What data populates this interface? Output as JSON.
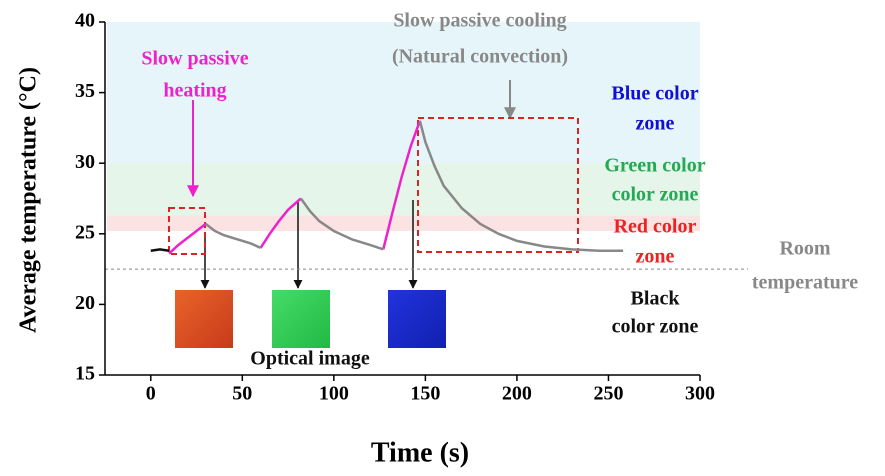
{
  "chart_data": {
    "type": "line",
    "x_label": "Time (s)",
    "y_label": "Average temperature (°C)",
    "xlim": [
      -25,
      300
    ],
    "xticks": [
      0,
      50,
      100,
      150,
      200,
      250,
      300
    ],
    "ylim": [
      15,
      40
    ],
    "yticks": [
      15,
      20,
      25,
      30,
      35,
      40
    ],
    "series": [
      {
        "color": "#111111",
        "x": [
          0,
          5,
          10
        ],
        "values": [
          23.8,
          23.9,
          23.8
        ]
      },
      {
        "color": "#ee22cc",
        "x": [
          10,
          15,
          20,
          25,
          30,
          null,
          60,
          65,
          70,
          75,
          82,
          null,
          127,
          132,
          137,
          142,
          147
        ],
        "values": [
          23.6,
          24.2,
          24.7,
          25.2,
          25.7,
          null,
          24.0,
          25.0,
          25.9,
          26.7,
          27.5,
          null,
          23.9,
          26.5,
          29.0,
          31.2,
          33.0
        ]
      },
      {
        "color": "#888888",
        "x": [
          30,
          35,
          40,
          45,
          50,
          55,
          60,
          null,
          82,
          87,
          92,
          100,
          110,
          120,
          127,
          null,
          147,
          150,
          155,
          160,
          170,
          180,
          190,
          200,
          215,
          230,
          245,
          258
        ],
        "values": [
          25.7,
          25.2,
          24.9,
          24.7,
          24.5,
          24.3,
          24.0,
          null,
          27.5,
          26.6,
          25.9,
          25.2,
          24.6,
          24.2,
          23.9,
          null,
          33.0,
          31.5,
          29.8,
          28.4,
          26.8,
          25.7,
          25.0,
          24.5,
          24.1,
          23.9,
          23.8,
          23.8
        ]
      }
    ],
    "zones": [
      {
        "label": [
          "Blue color",
          "zone"
        ],
        "range": [
          30,
          40
        ],
        "color": "#e6f5f9",
        "text_color": "#1010d0"
      },
      {
        "label": [
          "Green color",
          "color zone"
        ],
        "range": [
          26.3,
          30
        ],
        "color": "#e6f5ea",
        "text_color": "#22aa55"
      },
      {
        "label": [
          "Red color",
          "zone"
        ],
        "range": [
          25.2,
          26.3
        ],
        "color": "#fbe3e3",
        "text_color": "#ee2222"
      }
    ],
    "room_temperature": {
      "value": 22.5,
      "label": [
        "Room",
        "temperature"
      ]
    },
    "annotations": [
      {
        "lines": [
          "Slow passive",
          "heating"
        ],
        "color": "#ee22cc"
      },
      {
        "lines": [
          "Slow passive cooling",
          "(Natural convection)"
        ],
        "color": "#888888"
      },
      {
        "lines": [
          "Black",
          "color zone"
        ],
        "color": "#111111"
      },
      {
        "lines": [
          "Optical image"
        ],
        "color": "#111111"
      }
    ]
  }
}
